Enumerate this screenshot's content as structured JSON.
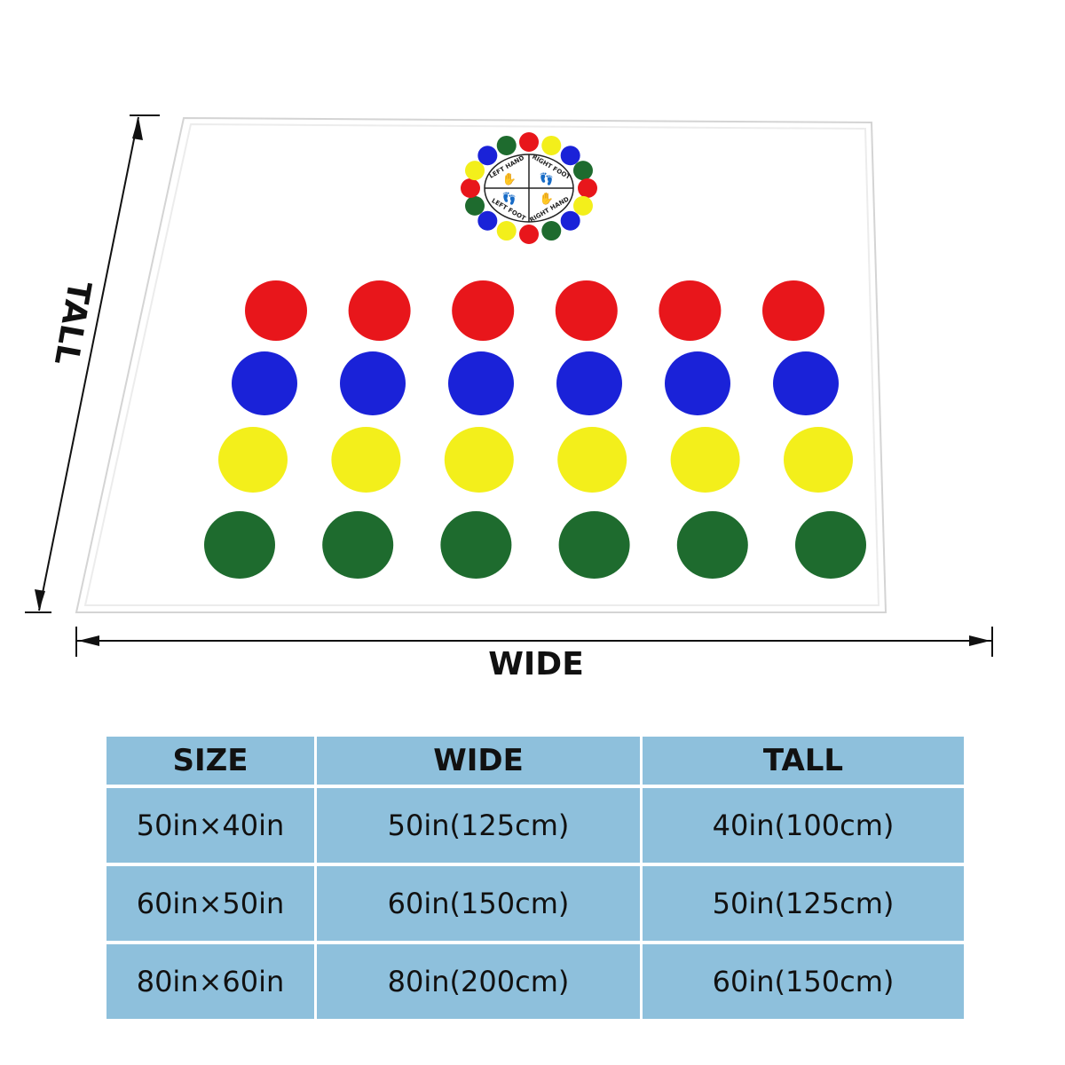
{
  "labels": {
    "wide": "WIDE",
    "tall": "TALL"
  },
  "spinner": {
    "quadrants": [
      "LEFT HAND",
      "RIGHT FOOT",
      "RIGHT HAND",
      "LEFT FOOT"
    ],
    "ring_colors": [
      "#e8161b",
      "#f3ef1b",
      "#1a22d8",
      "#1e6b2e"
    ]
  },
  "mat": {
    "rows": [
      {
        "color": "red",
        "hex": "#e8161b",
        "count": 6
      },
      {
        "color": "blue",
        "hex": "#1a22d8",
        "count": 6
      },
      {
        "color": "yellow",
        "hex": "#f3ef1b",
        "count": 6
      },
      {
        "color": "green",
        "hex": "#1e6b2e",
        "count": 6
      }
    ]
  },
  "size_table": {
    "headers": [
      "SIZE",
      "WIDE",
      "TALL"
    ],
    "rows": [
      [
        "50in×40in",
        "50in(125cm)",
        "40in(100cm)"
      ],
      [
        "60in×50in",
        "60in(150cm)",
        "50in(125cm)"
      ],
      [
        "80in×60in",
        "80in(200cm)",
        "60in(150cm)"
      ]
    ],
    "header_bg": "#8ec0dc"
  }
}
